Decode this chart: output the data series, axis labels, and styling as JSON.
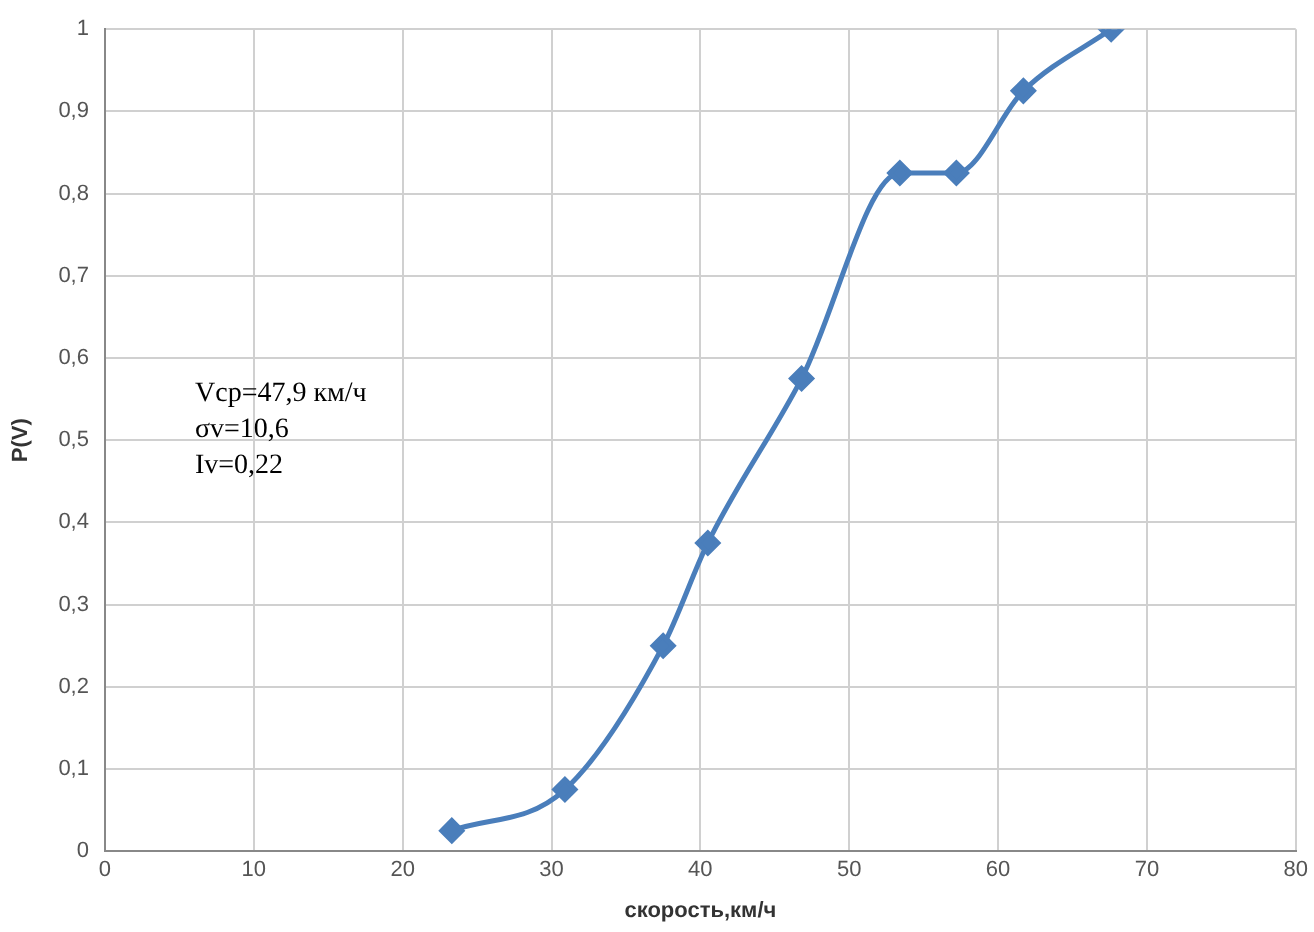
{
  "chart_data": {
    "type": "line",
    "xlabel": "скорость,км/ч",
    "ylabel": "P(V)",
    "x": [
      23.3,
      30.9,
      37.5,
      40.5,
      46.8,
      53.4,
      57.2,
      61.7,
      67.6
    ],
    "series": [
      {
        "color": "#4a7ebb",
        "values": [
          0.025,
          0.075,
          0.25,
          0.375,
          0.575,
          0.825,
          0.825,
          0.925,
          1
        ]
      }
    ],
    "xlim": [
      0,
      80
    ],
    "xticks": [
      0,
      10,
      20,
      30,
      40,
      50,
      60,
      70,
      80
    ],
    "ylim": [
      0,
      1
    ],
    "yticks": [
      0,
      {
        "value": 0.1,
        "label": "0,1"
      },
      {
        "value": 0.2,
        "label": "0,2"
      },
      {
        "value": 0.3,
        "label": "0,3"
      },
      {
        "value": 0.4,
        "label": "0,4"
      },
      {
        "value": 0.5,
        "label": "0,5"
      },
      {
        "value": 0.6,
        "label": "0,6"
      },
      {
        "value": 0.7,
        "label": "0,7"
      },
      {
        "value": 0.8,
        "label": "0,8"
      },
      {
        "value": 0.9,
        "label": "0,9"
      },
      1
    ],
    "annotations": [
      "Vcp=47,9 км/ч",
      "σv=10,6",
      "Iv=0,22"
    ],
    "grid": true,
    "legend": false,
    "marker": "diamond",
    "line_style": "solid"
  }
}
